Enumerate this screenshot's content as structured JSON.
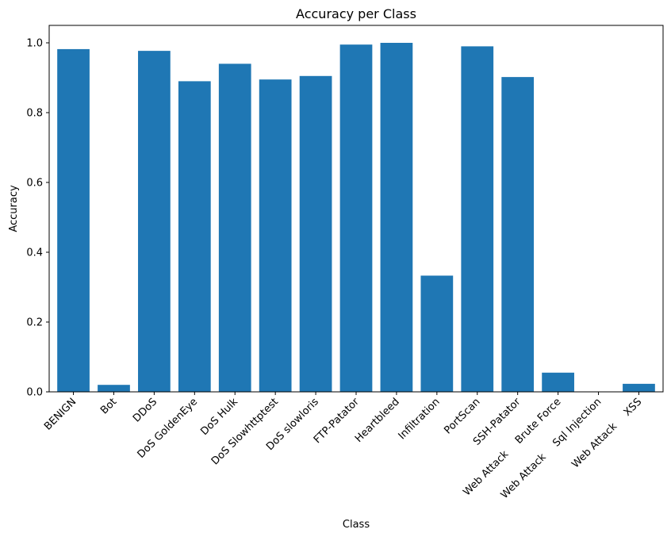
{
  "chart_data": {
    "type": "bar",
    "title": "Accuracy per Class",
    "xlabel": "Class",
    "ylabel": "Accuracy",
    "ylim": [
      0,
      1.05
    ],
    "yticks": [
      0.0,
      0.2,
      0.4,
      0.6,
      0.8,
      1.0
    ],
    "ytick_labels": [
      "0.0",
      "0.2",
      "0.4",
      "0.6",
      "0.8",
      "1.0"
    ],
    "categories": [
      "BENIGN",
      "Bot",
      "DDoS",
      "DoS GoldenEye",
      "DoS Hulk",
      "DoS Slowhttptest",
      "DoS slowloris",
      "FTP-Patator",
      "Heartbleed",
      "Infiltration",
      "PortScan",
      "SSH-Patator",
      "Web Attack  Brute Force",
      "Web Attack  Sql Injection",
      "Web Attack  XSS"
    ],
    "values": [
      0.982,
      0.02,
      0.977,
      0.89,
      0.94,
      0.895,
      0.905,
      0.995,
      1.0,
      0.333,
      0.99,
      0.902,
      0.055,
      0.0,
      0.023
    ],
    "bar_color": "#1f77b4",
    "grid": false,
    "legend": "none"
  }
}
